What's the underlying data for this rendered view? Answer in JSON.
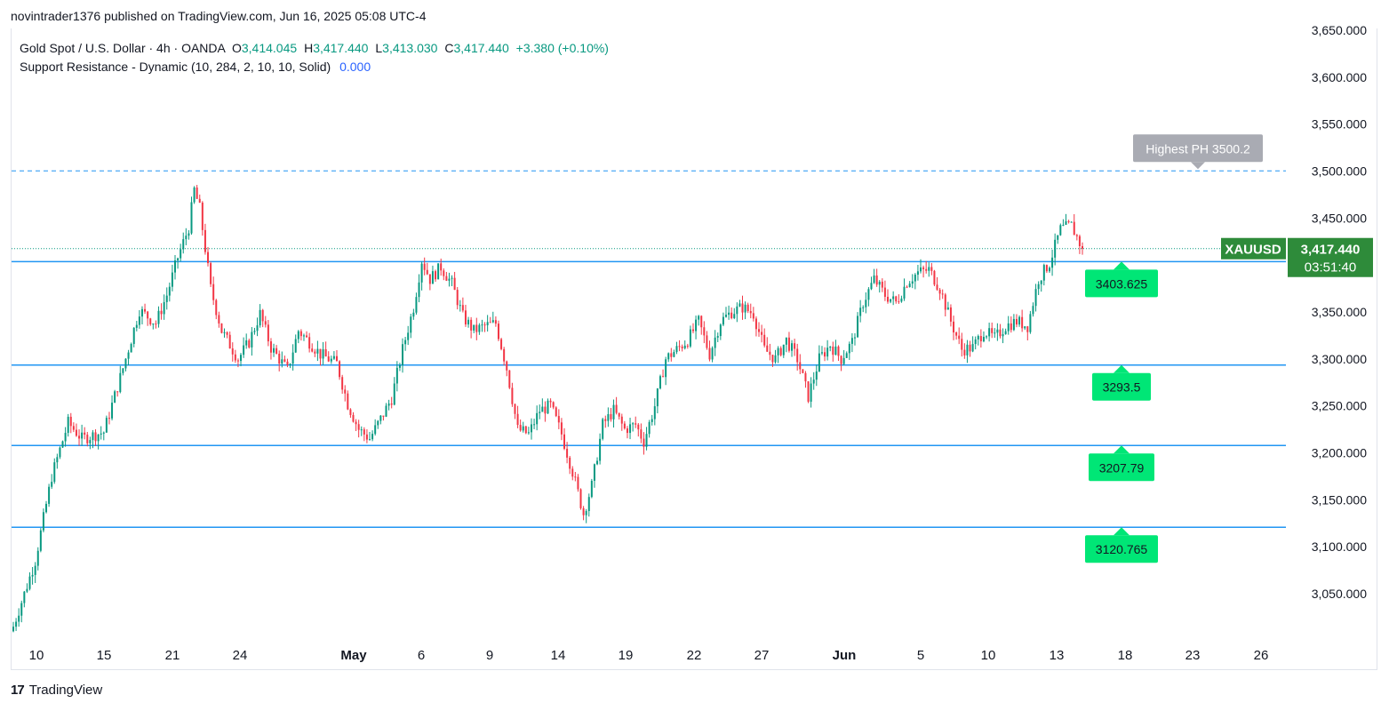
{
  "header": {
    "published_text": "novintrader1376 published on TradingView.com, Jun 16, 2025 05:08 UTC-4"
  },
  "legend": {
    "symbol_line": "Gold Spot / U.S. Dollar · 4h · OANDA",
    "open_label": "O",
    "open": "3,414.045",
    "high_label": "H",
    "high": "3,417.440",
    "low_label": "L",
    "low": "3,413.030",
    "close_label": "C",
    "close": "3,417.440",
    "change": "+3.380 (+0.10%)",
    "indicator": "Support Resistance - Dynamic (10, 284, 2, 10, 10, Solid)",
    "indicator_value": "0.000"
  },
  "footer": {
    "brand": "TradingView",
    "logo": "17"
  },
  "colors": {
    "up": "#089981",
    "down": "#f23645",
    "level_line": "#2196f3",
    "label_green": "#00e676",
    "price_tag": "#2e8b3a",
    "pivot_label": "#a9abb3"
  },
  "chart_data": {
    "type": "candlestick",
    "symbol": "XAUUSD",
    "timeframe": "4h",
    "ylim": [
      3005,
      3650
    ],
    "y_ticks": [
      3050,
      3100,
      3150,
      3200,
      3250,
      3300,
      3350,
      3400,
      3450,
      3500,
      3550,
      3600,
      3650
    ],
    "y_tick_labels": [
      "3,050.000",
      "3,100.000",
      "3,150.000",
      "3,200.000",
      "3,250.000",
      "3,300.000",
      "3,350.000",
      "3,400.000",
      "3,450.000",
      "3,500.000",
      "3,550.000",
      "3,600.000",
      "3,650.000"
    ],
    "x_labels": [
      "10",
      "15",
      "21",
      "24",
      "May",
      "6",
      "9",
      "14",
      "19",
      "22",
      "27",
      "Jun",
      "5",
      "10",
      "13",
      "18",
      "23",
      "26"
    ],
    "support_resistance_levels": [
      {
        "value": 3403.625,
        "label": "3403.625"
      },
      {
        "value": 3293.5,
        "label": "3293.5"
      },
      {
        "value": 3207.79,
        "label": "3207.79"
      },
      {
        "value": 3120.765,
        "label": "3120.765"
      }
    ],
    "highest_pivot": {
      "value": 3500.2,
      "label": "Highest PH 3500.2"
    },
    "last_price": {
      "value": 3417.44,
      "label": "3,417.440",
      "symbol_tag": "XAUUSD",
      "countdown": "03:51:40"
    },
    "close_path": [
      [
        0,
        3015
      ],
      [
        8,
        3085
      ],
      [
        14,
        3175
      ],
      [
        20,
        3232
      ],
      [
        25,
        3215
      ],
      [
        33,
        3222
      ],
      [
        40,
        3290
      ],
      [
        46,
        3352
      ],
      [
        52,
        3338
      ],
      [
        56,
        3368
      ],
      [
        60,
        3408
      ],
      [
        64,
        3440
      ],
      [
        66,
        3480
      ],
      [
        68,
        3460
      ],
      [
        72,
        3375
      ],
      [
        76,
        3330
      ],
      [
        82,
        3300
      ],
      [
        86,
        3318
      ],
      [
        90,
        3348
      ],
      [
        94,
        3312
      ],
      [
        100,
        3288
      ],
      [
        104,
        3330
      ],
      [
        108,
        3318
      ],
      [
        112,
        3305
      ],
      [
        118,
        3295
      ],
      [
        122,
        3252
      ],
      [
        126,
        3225
      ],
      [
        130,
        3215
      ],
      [
        134,
        3236
      ],
      [
        138,
        3258
      ],
      [
        142,
        3310
      ],
      [
        146,
        3355
      ],
      [
        149,
        3405
      ],
      [
        152,
        3385
      ],
      [
        156,
        3398
      ],
      [
        160,
        3380
      ],
      [
        164,
        3345
      ],
      [
        168,
        3330
      ],
      [
        172,
        3335
      ],
      [
        176,
        3338
      ],
      [
        180,
        3290
      ],
      [
        184,
        3225
      ],
      [
        188,
        3220
      ],
      [
        192,
        3245
      ],
      [
        196,
        3250
      ],
      [
        200,
        3220
      ],
      [
        204,
        3180
      ],
      [
        208,
        3135
      ],
      [
        211,
        3165
      ],
      [
        215,
        3230
      ],
      [
        219,
        3245
      ],
      [
        223,
        3225
      ],
      [
        227,
        3230
      ],
      [
        230,
        3212
      ],
      [
        234,
        3250
      ],
      [
        238,
        3300
      ],
      [
        242,
        3310
      ],
      [
        246,
        3320
      ],
      [
        250,
        3340
      ],
      [
        254,
        3305
      ],
      [
        258,
        3340
      ],
      [
        262,
        3350
      ],
      [
        266,
        3355
      ],
      [
        270,
        3348
      ],
      [
        274,
        3310
      ],
      [
        278,
        3300
      ],
      [
        282,
        3320
      ],
      [
        286,
        3300
      ],
      [
        290,
        3260
      ],
      [
        294,
        3300
      ],
      [
        298,
        3315
      ],
      [
        302,
        3300
      ],
      [
        306,
        3318
      ],
      [
        310,
        3360
      ],
      [
        314,
        3385
      ],
      [
        318,
        3368
      ],
      [
        322,
        3360
      ],
      [
        326,
        3382
      ],
      [
        330,
        3392
      ],
      [
        334,
        3395
      ],
      [
        338,
        3375
      ],
      [
        342,
        3340
      ],
      [
        346,
        3310
      ],
      [
        350,
        3312
      ],
      [
        354,
        3330
      ],
      [
        358,
        3322
      ],
      [
        362,
        3335
      ],
      [
        366,
        3340
      ],
      [
        370,
        3335
      ],
      [
        374,
        3385
      ],
      [
        378,
        3402
      ],
      [
        382,
        3438
      ],
      [
        386,
        3442
      ],
      [
        390,
        3417
      ]
    ]
  }
}
